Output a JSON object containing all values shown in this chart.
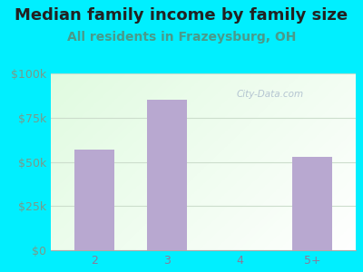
{
  "title": "Median family income by family size",
  "subtitle": "All residents in Frazeysburg, OH",
  "categories": [
    "2",
    "3",
    "4",
    "5+"
  ],
  "values": [
    57000,
    85000,
    0,
    53000
  ],
  "bar_color": "#b8a8d0",
  "background_outer": "#00efff",
  "title_color": "#222222",
  "subtitle_color": "#4a9a8a",
  "ytick_color": "#7a9a8a",
  "xtick_color": "#8a7a9a",
  "ylim": [
    0,
    100000
  ],
  "yticks": [
    0,
    25000,
    50000,
    75000,
    100000
  ],
  "ytick_labels": [
    "$0",
    "$25k",
    "$50k",
    "$75k",
    "$100k"
  ],
  "title_fontsize": 13,
  "subtitle_fontsize": 10,
  "tick_fontsize": 9,
  "watermark": "City-Data.com",
  "grid_color": "#ccddcc",
  "bar_width": 0.55
}
